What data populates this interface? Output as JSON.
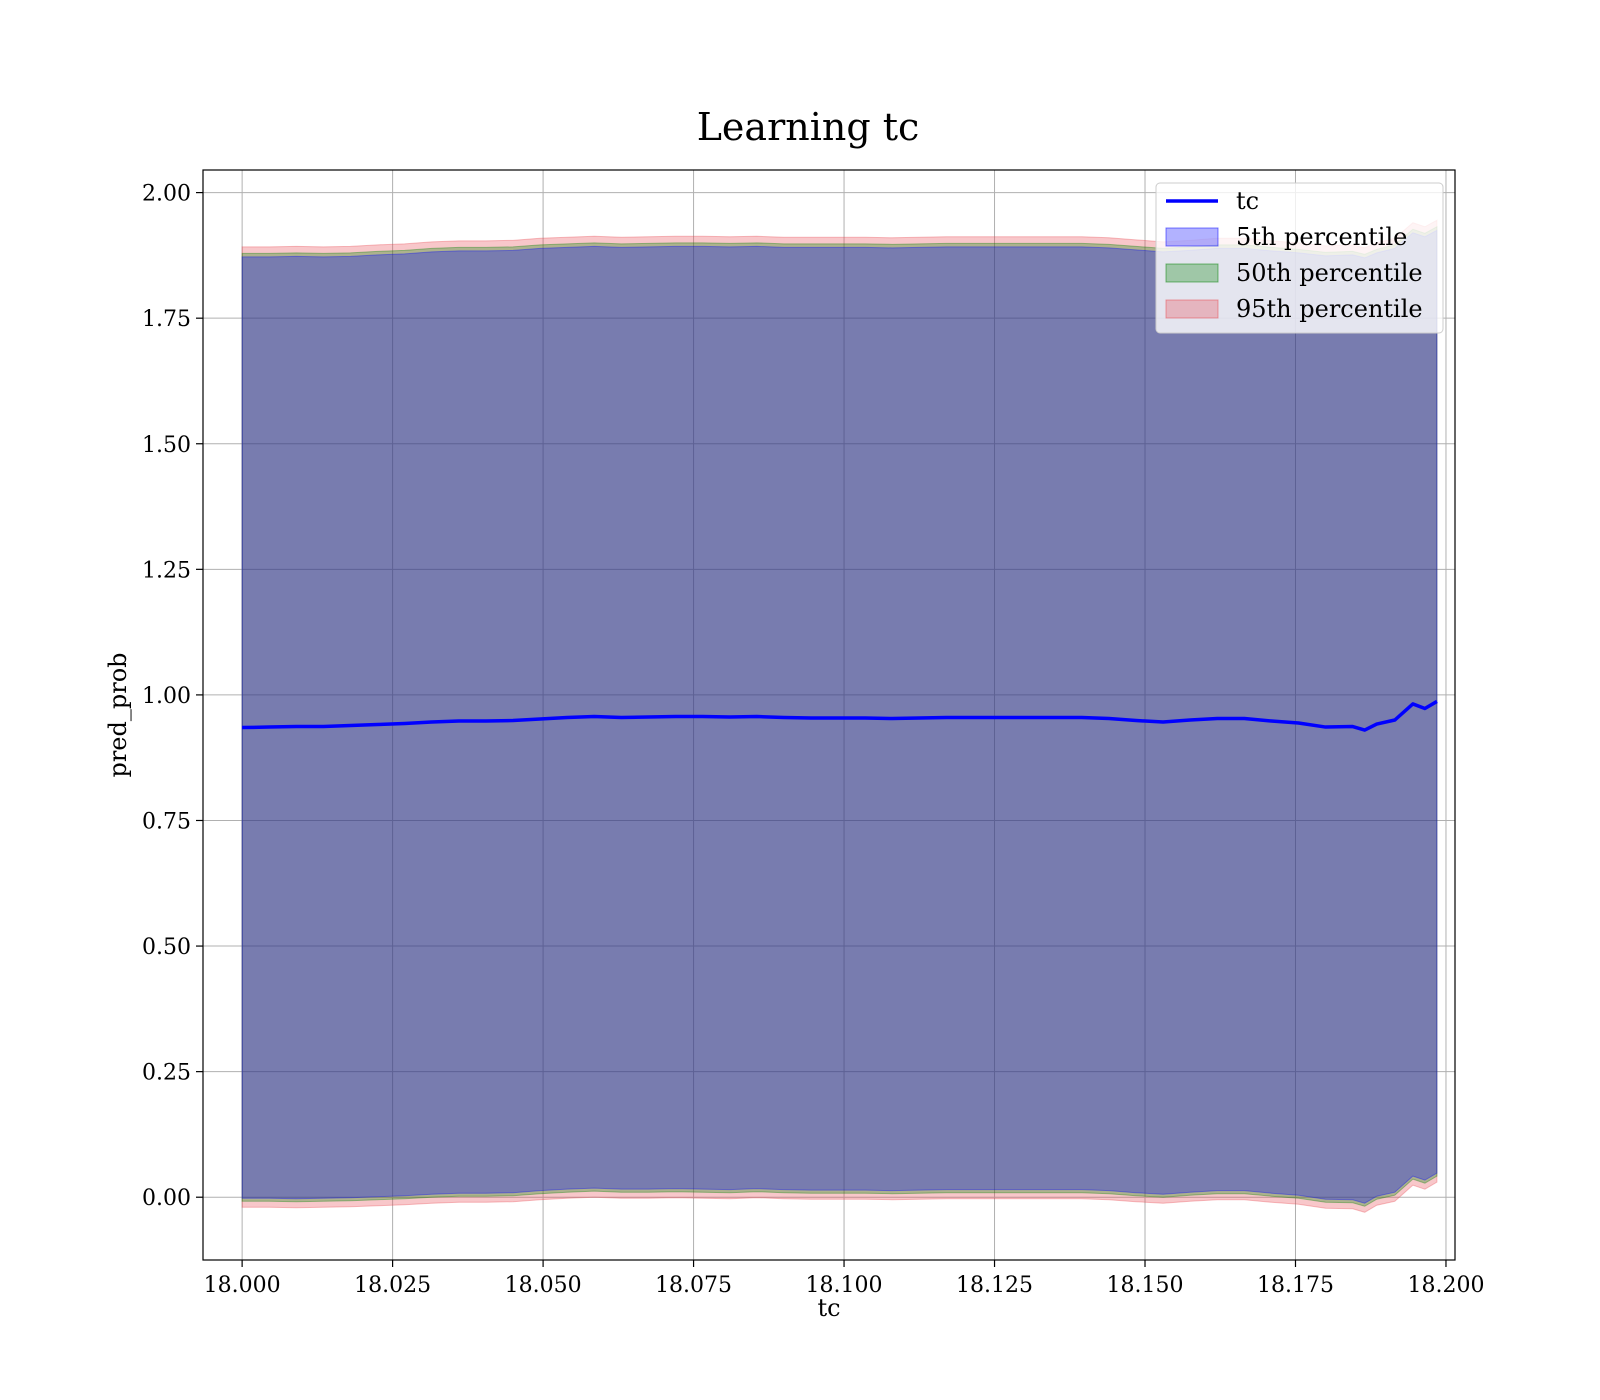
{
  "chart_data": {
    "type": "area",
    "title": "Learning tc",
    "xlabel": "tc",
    "ylabel": "pred_prob",
    "xlim": [
      17.9935,
      18.2015
    ],
    "ylim": [
      -0.125,
      2.045
    ],
    "x_ticks": [
      18.0,
      18.025,
      18.05,
      18.075,
      18.1,
      18.125,
      18.15,
      18.175,
      18.2
    ],
    "x_tick_labels": [
      "18.000",
      "18.025",
      "18.050",
      "18.075",
      "18.100",
      "18.125",
      "18.150",
      "18.175",
      "18.200"
    ],
    "y_ticks": [
      0.0,
      0.25,
      0.5,
      0.75,
      1.0,
      1.25,
      1.5,
      1.75,
      2.0
    ],
    "y_tick_labels": [
      "0.00",
      "0.25",
      "0.50",
      "0.75",
      "1.00",
      "1.25",
      "1.50",
      "1.75",
      "2.00"
    ],
    "grid": true,
    "legend_position": "top-right",
    "x": [
      18.0,
      18.0045,
      18.009,
      18.0135,
      18.018,
      18.0225,
      18.027,
      18.0315,
      18.036,
      18.0405,
      18.045,
      18.0495,
      18.054,
      18.0585,
      18.063,
      18.0675,
      18.072,
      18.0765,
      18.081,
      18.0855,
      18.09,
      18.0945,
      18.099,
      18.1035,
      18.108,
      18.1125,
      18.117,
      18.1215,
      18.126,
      18.1305,
      18.135,
      18.1395,
      18.144,
      18.1485,
      18.153,
      18.1575,
      18.162,
      18.1665,
      18.171,
      18.1755,
      18.18,
      18.1845,
      18.1865,
      18.1885,
      18.1915,
      18.1945,
      18.1965,
      18.1985
    ],
    "series": [
      {
        "name": "tc",
        "kind": "line",
        "color": "#0000ff",
        "values": [
          0.935,
          0.936,
          0.937,
          0.937,
          0.939,
          0.941,
          0.943,
          0.946,
          0.948,
          0.948,
          0.949,
          0.952,
          0.955,
          0.957,
          0.955,
          0.956,
          0.957,
          0.957,
          0.956,
          0.957,
          0.955,
          0.954,
          0.954,
          0.954,
          0.953,
          0.954,
          0.955,
          0.955,
          0.955,
          0.955,
          0.955,
          0.955,
          0.953,
          0.949,
          0.946,
          0.95,
          0.953,
          0.953,
          0.948,
          0.944,
          0.936,
          0.937,
          0.93,
          0.942,
          0.95,
          0.982,
          0.973,
          0.987
        ]
      },
      {
        "name": "5th percentile",
        "kind": "band",
        "color": "#0000ff",
        "lower": [
          -0.002,
          -0.002,
          -0.003,
          -0.002,
          -0.001,
          0.001,
          0.003,
          0.006,
          0.008,
          0.008,
          0.009,
          0.013,
          0.016,
          0.018,
          0.016,
          0.016,
          0.017,
          0.016,
          0.015,
          0.017,
          0.015,
          0.014,
          0.014,
          0.014,
          0.013,
          0.014,
          0.015,
          0.015,
          0.015,
          0.015,
          0.015,
          0.015,
          0.013,
          0.009,
          0.006,
          0.01,
          0.013,
          0.013,
          0.008,
          0.004,
          -0.004,
          -0.005,
          -0.012,
          0.002,
          0.01,
          0.042,
          0.034,
          0.048
        ],
        "upper": [
          1.872,
          1.872,
          1.873,
          1.872,
          1.873,
          1.876,
          1.878,
          1.882,
          1.884,
          1.884,
          1.885,
          1.889,
          1.891,
          1.893,
          1.891,
          1.892,
          1.893,
          1.893,
          1.892,
          1.893,
          1.891,
          1.891,
          1.891,
          1.891,
          1.89,
          1.891,
          1.892,
          1.892,
          1.892,
          1.892,
          1.892,
          1.892,
          1.89,
          1.886,
          1.882,
          1.885,
          1.889,
          1.889,
          1.884,
          1.88,
          1.874,
          1.876,
          1.87,
          1.88,
          1.889,
          1.92,
          1.912,
          1.925
        ]
      },
      {
        "name": "50th percentile",
        "kind": "band",
        "color": "#008000",
        "lower": [
          -0.008,
          -0.008,
          -0.009,
          -0.008,
          -0.007,
          -0.005,
          -0.003,
          0.0,
          0.002,
          0.002,
          0.003,
          0.007,
          0.01,
          0.012,
          0.01,
          0.01,
          0.011,
          0.01,
          0.009,
          0.011,
          0.009,
          0.008,
          0.008,
          0.008,
          0.007,
          0.008,
          0.009,
          0.009,
          0.009,
          0.009,
          0.009,
          0.009,
          0.007,
          0.003,
          0.0,
          0.004,
          0.007,
          0.007,
          0.002,
          -0.002,
          -0.01,
          -0.011,
          -0.018,
          -0.004,
          0.004,
          0.036,
          0.028,
          0.042
        ],
        "upper": [
          1.879,
          1.879,
          1.88,
          1.879,
          1.88,
          1.883,
          1.885,
          1.889,
          1.891,
          1.891,
          1.892,
          1.896,
          1.898,
          1.9,
          1.898,
          1.899,
          1.9,
          1.9,
          1.899,
          1.9,
          1.898,
          1.898,
          1.898,
          1.898,
          1.897,
          1.898,
          1.899,
          1.899,
          1.899,
          1.899,
          1.899,
          1.899,
          1.897,
          1.893,
          1.889,
          1.892,
          1.896,
          1.896,
          1.891,
          1.887,
          1.881,
          1.883,
          1.877,
          1.887,
          1.896,
          1.927,
          1.919,
          1.932
        ]
      },
      {
        "name": "95th percentile",
        "kind": "band",
        "color": "#e8474f",
        "lower": [
          -0.02,
          -0.02,
          -0.021,
          -0.02,
          -0.019,
          -0.017,
          -0.015,
          -0.012,
          -0.01,
          -0.01,
          -0.009,
          -0.005,
          -0.002,
          0.0,
          -0.002,
          -0.002,
          -0.001,
          -0.002,
          -0.003,
          -0.001,
          -0.003,
          -0.004,
          -0.004,
          -0.004,
          -0.005,
          -0.004,
          -0.003,
          -0.003,
          -0.003,
          -0.003,
          -0.003,
          -0.003,
          -0.005,
          -0.009,
          -0.012,
          -0.008,
          -0.005,
          -0.005,
          -0.01,
          -0.014,
          -0.022,
          -0.023,
          -0.03,
          -0.016,
          -0.008,
          0.024,
          0.016,
          0.03
        ],
        "upper": [
          1.892,
          1.892,
          1.893,
          1.892,
          1.893,
          1.896,
          1.898,
          1.902,
          1.904,
          1.904,
          1.905,
          1.909,
          1.911,
          1.913,
          1.911,
          1.912,
          1.913,
          1.913,
          1.912,
          1.913,
          1.911,
          1.911,
          1.911,
          1.911,
          1.91,
          1.911,
          1.912,
          1.912,
          1.912,
          1.912,
          1.912,
          1.912,
          1.91,
          1.906,
          1.902,
          1.905,
          1.909,
          1.909,
          1.904,
          1.9,
          1.894,
          1.896,
          1.89,
          1.9,
          1.909,
          1.94,
          1.932,
          1.945
        ]
      }
    ]
  }
}
